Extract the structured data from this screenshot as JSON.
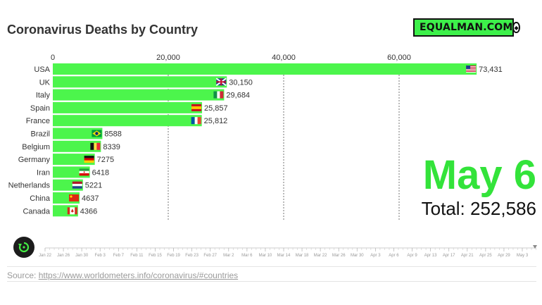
{
  "title": "Coronavirus Deaths by Country",
  "logo": {
    "text": "EQUALMAN.COM",
    "icon": "diamond-icon"
  },
  "date_label": "May 6",
  "total_label": "Total: 252,586",
  "source": {
    "prefix": "Source: ",
    "link": "https://www.worldometers.info/coronavirus/#countries"
  },
  "colors": {
    "bar": "#4cf54c",
    "date": "#33e33a",
    "grid": "#555555"
  },
  "timeline": {
    "ticks": [
      "Jan 22",
      "Jan 26",
      "Jan 30",
      "Feb 3",
      "Feb 7",
      "Feb 11",
      "Feb 15",
      "Feb 19",
      "Feb 23",
      "Feb 27",
      "Mar 2",
      "Mar 6",
      "Mar 10",
      "Mar 14",
      "Mar 18",
      "Mar 22",
      "Mar 26",
      "Mar 30",
      "Apr 3",
      "Apr 6",
      "Apr 9",
      "Apr 13",
      "Apr 17",
      "Apr 21",
      "Apr 25",
      "Apr 29",
      "May 3"
    ]
  },
  "chart_data": {
    "type": "bar",
    "orientation": "horizontal",
    "title": "Coronavirus Deaths by Country",
    "categories": [
      "USA",
      "UK",
      "Italy",
      "Spain",
      "France",
      "Brazil",
      "Belgium",
      "Germany",
      "Iran",
      "Netherlands",
      "China",
      "Canada"
    ],
    "values": [
      73431,
      30150,
      29684,
      25857,
      25812,
      8588,
      8339,
      7275,
      6418,
      5221,
      4637,
      4366
    ],
    "value_labels": [
      "73,431",
      "30,150",
      "29,684",
      "25,857",
      "25,812",
      "8588",
      "8339",
      "7275",
      "6418",
      "5221",
      "4637",
      "4366"
    ],
    "flags": [
      "usa",
      "uk",
      "italy",
      "spain",
      "france",
      "brazil",
      "belgium",
      "germany",
      "iran",
      "netherlands",
      "china",
      "canada"
    ],
    "x_ticks": [
      0,
      20000,
      40000,
      60000
    ],
    "x_tick_labels": [
      "0",
      "20,000",
      "40,000",
      "60,000"
    ],
    "xlim": [
      0,
      74000
    ],
    "grid": true
  }
}
